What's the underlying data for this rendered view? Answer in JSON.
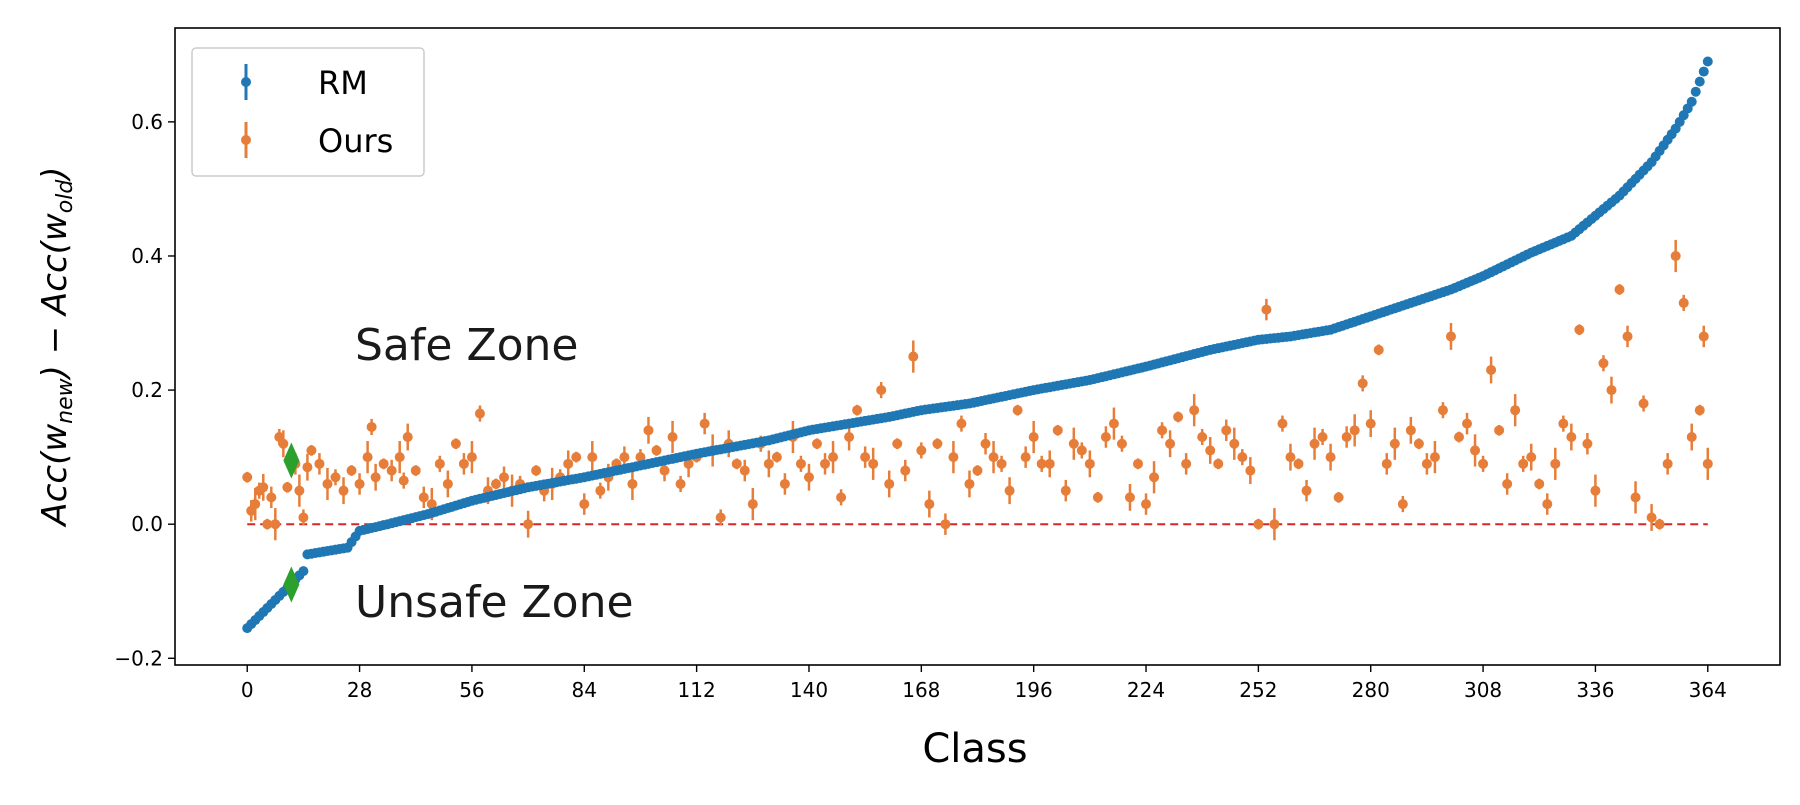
{
  "chart_data": {
    "type": "scatter",
    "title": "",
    "xlabel": "Class",
    "ylabel": "Acc(w_new) − Acc(w_old)",
    "ylabel_parts": {
      "a": "Acc(",
      "w1": "w",
      "s1": "new",
      "b": ") − Acc(",
      "w2": "w",
      "s2": "old",
      "c": ")"
    },
    "xlim": [
      -18,
      382
    ],
    "ylim": [
      -0.21,
      0.74
    ],
    "xticks": [
      0,
      28,
      56,
      84,
      112,
      140,
      168,
      196,
      224,
      252,
      280,
      308,
      336,
      364
    ],
    "yticks": [
      -0.2,
      0.0,
      0.2,
      0.4,
      0.6
    ],
    "ytick_labels": [
      "−0.2",
      "0.0",
      "0.2",
      "0.4",
      "0.6"
    ],
    "grid": false,
    "legend_position": "top-left",
    "annotations": {
      "safe": "Safe Zone",
      "unsafe": "Unsafe Zone"
    },
    "reference_line": {
      "y": 0.0,
      "color": "#d62728",
      "style": "dashed"
    },
    "highlight_markers": [
      {
        "x": 11,
        "y": 0.095,
        "color": "#2ca02c",
        "shape": "diamond"
      },
      {
        "x": 11,
        "y": -0.09,
        "color": "#2ca02c",
        "shape": "diamond"
      }
    ],
    "colors": {
      "rm": "#1f77b4",
      "ours": "#e67e3a",
      "zero_line": "#d62728",
      "highlight": "#2ca02c"
    },
    "series": [
      {
        "name": "RM",
        "color": "#1f77b4",
        "curve_keypoints": [
          [
            0,
            -0.155
          ],
          [
            5,
            -0.125
          ],
          [
            10,
            -0.095
          ],
          [
            14,
            -0.07
          ],
          [
            15,
            -0.045
          ],
          [
            25,
            -0.035
          ],
          [
            28,
            -0.01
          ],
          [
            35,
            0.0
          ],
          [
            45,
            0.015
          ],
          [
            56,
            0.035
          ],
          [
            70,
            0.055
          ],
          [
            84,
            0.07
          ],
          [
            100,
            0.09
          ],
          [
            112,
            0.105
          ],
          [
            130,
            0.125
          ],
          [
            140,
            0.14
          ],
          [
            160,
            0.16
          ],
          [
            168,
            0.17
          ],
          [
            180,
            0.18
          ],
          [
            196,
            0.2
          ],
          [
            210,
            0.215
          ],
          [
            224,
            0.235
          ],
          [
            240,
            0.26
          ],
          [
            252,
            0.275
          ],
          [
            260,
            0.28
          ],
          [
            270,
            0.29
          ],
          [
            280,
            0.31
          ],
          [
            290,
            0.33
          ],
          [
            300,
            0.35
          ],
          [
            308,
            0.37
          ],
          [
            320,
            0.405
          ],
          [
            330,
            0.43
          ],
          [
            336,
            0.46
          ],
          [
            342,
            0.49
          ],
          [
            350,
            0.54
          ],
          [
            356,
            0.59
          ],
          [
            360,
            0.63
          ],
          [
            364,
            0.69
          ]
        ],
        "point_count": 365
      },
      {
        "name": "Ours",
        "color": "#e67e3a",
        "points": [
          [
            0,
            0.07
          ],
          [
            1,
            0.02
          ],
          [
            2,
            0.03
          ],
          [
            3,
            0.05
          ],
          [
            4,
            0.055
          ],
          [
            5,
            0.0
          ],
          [
            6,
            0.04
          ],
          [
            7,
            0.0
          ],
          [
            8,
            0.13
          ],
          [
            9,
            0.12
          ],
          [
            10,
            0.055
          ],
          [
            12,
            0.09
          ],
          [
            13,
            0.05
          ],
          [
            14,
            0.01
          ],
          [
            15,
            0.085
          ],
          [
            16,
            0.11
          ],
          [
            18,
            0.09
          ],
          [
            20,
            0.06
          ],
          [
            22,
            0.07
          ],
          [
            24,
            0.05
          ],
          [
            26,
            0.08
          ],
          [
            28,
            0.06
          ],
          [
            30,
            0.1
          ],
          [
            31,
            0.145
          ],
          [
            32,
            0.07
          ],
          [
            34,
            0.09
          ],
          [
            36,
            0.08
          ],
          [
            38,
            0.1
          ],
          [
            39,
            0.065
          ],
          [
            40,
            0.13
          ],
          [
            42,
            0.08
          ],
          [
            44,
            0.04
          ],
          [
            46,
            0.03
          ],
          [
            48,
            0.09
          ],
          [
            50,
            0.06
          ],
          [
            52,
            0.12
          ],
          [
            54,
            0.09
          ],
          [
            56,
            0.1
          ],
          [
            58,
            0.165
          ],
          [
            60,
            0.05
          ],
          [
            62,
            0.06
          ],
          [
            64,
            0.07
          ],
          [
            66,
            0.05
          ],
          [
            68,
            0.06
          ],
          [
            70,
            0.0
          ],
          [
            72,
            0.08
          ],
          [
            74,
            0.05
          ],
          [
            76,
            0.06
          ],
          [
            78,
            0.07
          ],
          [
            80,
            0.09
          ],
          [
            82,
            0.1
          ],
          [
            84,
            0.03
          ],
          [
            86,
            0.1
          ],
          [
            88,
            0.05
          ],
          [
            90,
            0.07
          ],
          [
            92,
            0.09
          ],
          [
            94,
            0.1
          ],
          [
            96,
            0.06
          ],
          [
            98,
            0.1
          ],
          [
            100,
            0.14
          ],
          [
            102,
            0.11
          ],
          [
            104,
            0.08
          ],
          [
            106,
            0.13
          ],
          [
            108,
            0.06
          ],
          [
            110,
            0.09
          ],
          [
            112,
            0.1
          ],
          [
            114,
            0.15
          ],
          [
            116,
            0.11
          ],
          [
            118,
            0.01
          ],
          [
            120,
            0.12
          ],
          [
            122,
            0.09
          ],
          [
            124,
            0.08
          ],
          [
            126,
            0.03
          ],
          [
            128,
            0.12
          ],
          [
            130,
            0.09
          ],
          [
            132,
            0.1
          ],
          [
            134,
            0.06
          ],
          [
            136,
            0.13
          ],
          [
            138,
            0.09
          ],
          [
            140,
            0.07
          ],
          [
            142,
            0.12
          ],
          [
            144,
            0.09
          ],
          [
            146,
            0.1
          ],
          [
            148,
            0.04
          ],
          [
            150,
            0.13
          ],
          [
            152,
            0.17
          ],
          [
            154,
            0.1
          ],
          [
            156,
            0.09
          ],
          [
            158,
            0.2
          ],
          [
            160,
            0.06
          ],
          [
            162,
            0.12
          ],
          [
            164,
            0.08
          ],
          [
            166,
            0.25
          ],
          [
            168,
            0.11
          ],
          [
            170,
            0.03
          ],
          [
            172,
            0.12
          ],
          [
            174,
            0.0
          ],
          [
            176,
            0.1
          ],
          [
            178,
            0.15
          ],
          [
            180,
            0.06
          ],
          [
            182,
            0.08
          ],
          [
            184,
            0.12
          ],
          [
            186,
            0.1
          ],
          [
            188,
            0.09
          ],
          [
            190,
            0.05
          ],
          [
            192,
            0.17
          ],
          [
            194,
            0.1
          ],
          [
            196,
            0.13
          ],
          [
            198,
            0.09
          ],
          [
            200,
            0.09
          ],
          [
            202,
            0.14
          ],
          [
            204,
            0.05
          ],
          [
            206,
            0.12
          ],
          [
            208,
            0.11
          ],
          [
            210,
            0.09
          ],
          [
            212,
            0.04
          ],
          [
            214,
            0.13
          ],
          [
            216,
            0.15
          ],
          [
            218,
            0.12
          ],
          [
            220,
            0.04
          ],
          [
            222,
            0.09
          ],
          [
            224,
            0.03
          ],
          [
            226,
            0.07
          ],
          [
            228,
            0.14
          ],
          [
            230,
            0.12
          ],
          [
            232,
            0.16
          ],
          [
            234,
            0.09
          ],
          [
            236,
            0.17
          ],
          [
            238,
            0.13
          ],
          [
            240,
            0.11
          ],
          [
            242,
            0.09
          ],
          [
            244,
            0.14
          ],
          [
            246,
            0.12
          ],
          [
            248,
            0.1
          ],
          [
            250,
            0.08
          ],
          [
            252,
            0.0
          ],
          [
            254,
            0.32
          ],
          [
            256,
            0.0
          ],
          [
            258,
            0.15
          ],
          [
            260,
            0.1
          ],
          [
            262,
            0.09
          ],
          [
            264,
            0.05
          ],
          [
            266,
            0.12
          ],
          [
            268,
            0.13
          ],
          [
            270,
            0.1
          ],
          [
            272,
            0.04
          ],
          [
            274,
            0.13
          ],
          [
            276,
            0.14
          ],
          [
            278,
            0.21
          ],
          [
            280,
            0.15
          ],
          [
            282,
            0.26
          ],
          [
            284,
            0.09
          ],
          [
            286,
            0.12
          ],
          [
            288,
            0.03
          ],
          [
            290,
            0.14
          ],
          [
            292,
            0.12
          ],
          [
            294,
            0.09
          ],
          [
            296,
            0.1
          ],
          [
            298,
            0.17
          ],
          [
            300,
            0.28
          ],
          [
            302,
            0.13
          ],
          [
            304,
            0.15
          ],
          [
            306,
            0.11
          ],
          [
            308,
            0.09
          ],
          [
            310,
            0.23
          ],
          [
            312,
            0.14
          ],
          [
            314,
            0.06
          ],
          [
            316,
            0.17
          ],
          [
            318,
            0.09
          ],
          [
            320,
            0.1
          ],
          [
            322,
            0.06
          ],
          [
            324,
            0.03
          ],
          [
            326,
            0.09
          ],
          [
            328,
            0.15
          ],
          [
            330,
            0.13
          ],
          [
            332,
            0.29
          ],
          [
            334,
            0.12
          ],
          [
            336,
            0.05
          ],
          [
            338,
            0.24
          ],
          [
            340,
            0.2
          ],
          [
            342,
            0.35
          ],
          [
            344,
            0.28
          ],
          [
            346,
            0.04
          ],
          [
            348,
            0.18
          ],
          [
            350,
            0.01
          ],
          [
            352,
            0.0
          ],
          [
            354,
            0.09
          ],
          [
            356,
            0.4
          ],
          [
            358,
            0.33
          ],
          [
            360,
            0.13
          ],
          [
            362,
            0.17
          ],
          [
            363,
            0.28
          ],
          [
            364,
            0.09
          ]
        ]
      }
    ]
  }
}
